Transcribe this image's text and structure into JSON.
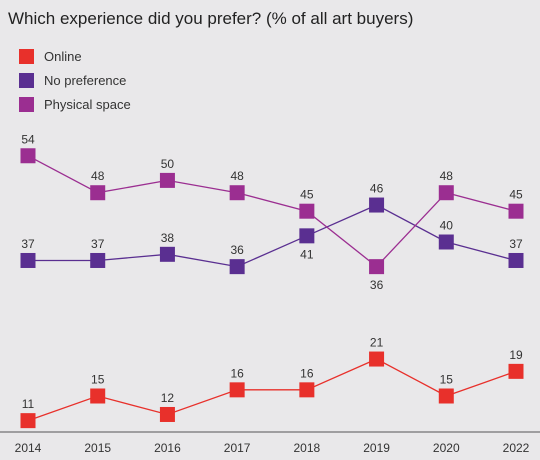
{
  "chart_data": {
    "type": "line",
    "title": "Which experience did you prefer? (% of all art buyers)",
    "x": [
      "2014",
      "2015",
      "2016",
      "2017",
      "2018",
      "2019",
      "2020",
      "2022"
    ],
    "ylim": [
      0,
      60
    ],
    "grid": false,
    "legend": "top-left",
    "series": [
      {
        "name": "Online",
        "values": [
          11,
          15,
          12,
          16,
          16,
          21,
          15,
          19
        ],
        "color": "#e8302b"
      },
      {
        "name": "No preference",
        "values": [
          37,
          37,
          38,
          36,
          41,
          46,
          40,
          37
        ],
        "color": "#5a2f91"
      },
      {
        "name": "Physical space",
        "values": [
          54,
          48,
          50,
          48,
          45,
          36,
          48,
          45
        ],
        "color": "#9b2e91"
      }
    ]
  }
}
